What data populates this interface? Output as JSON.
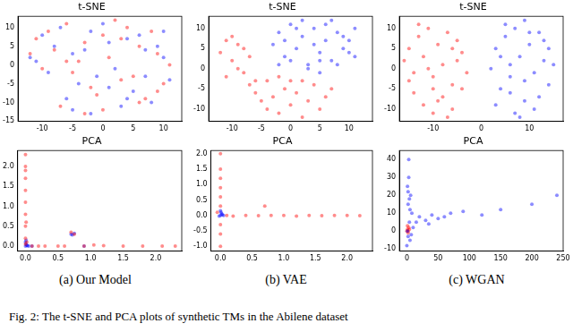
{
  "chart_data": [
    {
      "type": "scatter",
      "title": "t-SNE",
      "grid": false,
      "marker": "circle",
      "xlim": [
        -14,
        13
      ],
      "xticks": [
        -10,
        -5,
        0,
        5,
        10
      ],
      "ylim": [
        -15,
        13
      ],
      "yticks": [
        -15,
        -10,
        -5,
        0,
        5,
        10
      ],
      "series": [
        {
          "color": "#ff0000",
          "x": [
            -11,
            -9,
            -8,
            -6,
            -5,
            -3,
            -2,
            0,
            1,
            3,
            4,
            6,
            7,
            9,
            10,
            -10,
            -7,
            -4,
            -1,
            2,
            5,
            8,
            11,
            -12,
            -6,
            0,
            6,
            -3,
            3,
            9
          ],
          "y": [
            7,
            9,
            4,
            11,
            -2,
            6,
            -6,
            8,
            2,
            -4,
            10,
            5,
            -9,
            3,
            -5,
            -1,
            -11,
            1,
            -8,
            12,
            -3,
            9,
            0,
            3,
            1,
            -12,
            -10,
            -13,
            7,
            -7
          ]
        },
        {
          "color": "#0000ff",
          "x": [
            -10,
            -8,
            -7,
            -5,
            -4,
            -2,
            -1,
            1,
            2,
            4,
            5,
            7,
            8,
            10,
            11,
            -11,
            -9,
            -6,
            -3,
            0,
            3,
            6,
            9,
            -12,
            -5,
            1,
            7,
            -2,
            4,
            10
          ],
          "y": [
            8,
            5,
            10,
            3,
            -5,
            9,
            -3,
            6,
            -1,
            7,
            -7,
            4,
            -10,
            2,
            -4,
            1,
            -2,
            -9,
            4,
            11,
            -11,
            8,
            5,
            2,
            -12,
            -6,
            -3,
            -13,
            -9,
            9
          ]
        }
      ]
    },
    {
      "type": "scatter",
      "title": "PCA",
      "grid": false,
      "marker": "circle",
      "xlim": [
        -0.12,
        2.4
      ],
      "xticks": [
        {
          "value": 0,
          "label": "0.0"
        },
        {
          "value": 0.5,
          "label": "0.5"
        },
        {
          "value": 1,
          "label": "1.0"
        },
        {
          "value": 1.5,
          "label": "1.5"
        },
        {
          "value": 2,
          "label": "2.0"
        }
      ],
      "ylim": [
        -0.12,
        2.4
      ],
      "yticks": [
        {
          "value": 0,
          "label": "0.0"
        },
        {
          "value": 0.5,
          "label": "0.5"
        },
        {
          "value": 1,
          "label": "1.0"
        },
        {
          "value": 1.5,
          "label": "1.5"
        },
        {
          "value": 2,
          "label": "2.0"
        }
      ],
      "series": [
        {
          "color": "#ff0000",
          "x": [
            0,
            0,
            0,
            0,
            0,
            0,
            0,
            0,
            0.02,
            0.01,
            0.3,
            0.6,
            0.9,
            1.2,
            1.5,
            1.8,
            2.1,
            2.3,
            0.7,
            0.75,
            1.05,
            0.5,
            0.1,
            0.2,
            0,
            0
          ],
          "y": [
            0.2,
            0.5,
            0.8,
            1.1,
            1.4,
            1.7,
            2.0,
            2.3,
            0.1,
            0.6,
            0,
            0,
            0,
            0.01,
            0,
            0,
            0,
            0,
            0.35,
            0.3,
            0.03,
            0,
            0,
            0,
            0.05,
            1.9
          ]
        },
        {
          "color": "#0000ff",
          "x": [
            0,
            0.02,
            0.05,
            0.01,
            0,
            0.03,
            0.7,
            0.75,
            0.72,
            0.1,
            0.01,
            0.9
          ],
          "y": [
            0,
            0.02,
            0,
            0.05,
            0.1,
            0.01,
            0.3,
            0.32,
            0.28,
            0,
            0.15,
            0
          ]
        }
      ]
    },
    {
      "type": "scatter",
      "title": "t-SNE",
      "grid": false,
      "marker": "circle",
      "xlim": [
        -14,
        14
      ],
      "xticks": [
        -10,
        -5,
        0,
        5,
        10
      ],
      "ylim": [
        -13,
        13
      ],
      "yticks": [
        -10,
        -5,
        0,
        5,
        10
      ],
      "series": [
        {
          "color": "#ff0000",
          "x": [
            -12,
            -11,
            -10,
            -9,
            -8,
            -7,
            -11,
            -10,
            -9,
            -8,
            -7,
            -6,
            -5,
            -4,
            -3,
            -2,
            -1,
            0,
            1,
            2,
            3,
            4,
            5,
            6,
            7,
            -6,
            -4,
            -2,
            0,
            2
          ],
          "y": [
            4,
            7,
            2,
            6,
            -1,
            3,
            -2,
            8,
            0,
            5,
            -4,
            -6,
            -8,
            -10,
            -7,
            -11,
            -5,
            -9,
            -6,
            -12,
            -8,
            -4,
            -10,
            -7,
            -5,
            -3,
            -3,
            -2,
            -3,
            -3
          ]
        },
        {
          "color": "#0000ff",
          "x": [
            -3,
            -2,
            -1,
            0,
            1,
            2,
            3,
            4,
            5,
            6,
            7,
            8,
            9,
            10,
            11,
            -2,
            0,
            2,
            4,
            6,
            8,
            10,
            1,
            3,
            5,
            7,
            9,
            -1,
            5,
            11
          ],
          "y": [
            6,
            9,
            3,
            11,
            5,
            8,
            1,
            10,
            4,
            7,
            2,
            9,
            5,
            7,
            3,
            1,
            2,
            12,
            6,
            11,
            1,
            4,
            10,
            0,
            2,
            12,
            8,
            7,
            -1,
            10
          ]
        }
      ]
    },
    {
      "type": "scatter",
      "title": "PCA",
      "grid": false,
      "marker": "circle",
      "xlim": [
        -0.15,
        2.4
      ],
      "xticks": [
        {
          "value": 0,
          "label": "0.0"
        },
        {
          "value": 0.5,
          "label": "0.5"
        },
        {
          "value": 1,
          "label": "1.0"
        },
        {
          "value": 1.5,
          "label": "1.5"
        },
        {
          "value": 2,
          "label": "2.0"
        }
      ],
      "ylim": [
        -1.15,
        2.1
      ],
      "yticks": [
        {
          "value": -1,
          "label": "-1.0"
        },
        {
          "value": -0.5,
          "label": "-0.5"
        },
        {
          "value": 0,
          "label": "0.0"
        },
        {
          "value": 0.5,
          "label": "0.5"
        },
        {
          "value": 1,
          "label": "1.0"
        },
        {
          "value": 1.5,
          "label": "1.5"
        },
        {
          "value": 2,
          "label": "2.0"
        }
      ],
      "series": [
        {
          "color": "#ff0000",
          "x": [
            0,
            0,
            0,
            0,
            0,
            0,
            0,
            0,
            0,
            0.2,
            0.4,
            0.6,
            0.8,
            1.0,
            1.2,
            1.4,
            1.6,
            1.8,
            2.0,
            2.2,
            0.7,
            -0.05,
            0.1
          ],
          "y": [
            -1.0,
            -0.6,
            -0.3,
            0.3,
            0.6,
            0.9,
            1.2,
            1.5,
            2.0,
            -0.02,
            0,
            -0.01,
            0,
            0,
            -0.02,
            0,
            -0.01,
            0,
            0,
            -0.01,
            0.3,
            0.1,
            0
          ]
        },
        {
          "color": "#0000ff",
          "x": [
            0,
            0.02,
            0.01,
            -0.02,
            0.03,
            0,
            0.05
          ],
          "y": [
            0,
            0.05,
            0.1,
            -0.02,
            0.02,
            0.15,
            0
          ]
        }
      ]
    },
    {
      "type": "scatter",
      "title": "t-SNE",
      "grid": false,
      "marker": "circle",
      "xlim": [
        -17,
        17
      ],
      "xticks": [
        -10,
        0,
        10
      ],
      "ylim": [
        -13,
        13
      ],
      "yticks": [
        -10,
        -5,
        0,
        5,
        10
      ],
      "series": [
        {
          "color": "#ff0000",
          "x": [
            -16,
            -15,
            -14,
            -13,
            -12,
            -11,
            -10,
            -9,
            -8,
            -7,
            -6,
            -5,
            -4,
            -3,
            -14,
            -12,
            -10,
            -8,
            -6,
            -4,
            -13,
            -11,
            -9,
            -7,
            -5,
            -15,
            -10,
            -6
          ],
          "y": [
            2,
            5,
            -1,
            8,
            3,
            10,
            -2,
            6,
            1,
            9,
            -4,
            7,
            4,
            -1,
            -6,
            -9,
            -11,
            -7,
            -10,
            -5,
            11,
            0,
            -8,
            -12,
            2,
            -3,
            -5,
            5
          ]
        },
        {
          "color": "#0000ff",
          "x": [
            2,
            3,
            4,
            5,
            6,
            7,
            8,
            9,
            10,
            11,
            12,
            13,
            14,
            15,
            3,
            5,
            7,
            9,
            11,
            13,
            4,
            6,
            8,
            10,
            12,
            14,
            6,
            9
          ],
          "y": [
            0,
            5,
            -5,
            8,
            -2,
            10,
            3,
            -8,
            6,
            -1,
            9,
            2,
            -4,
            1,
            -9,
            11,
            -11,
            12,
            -10,
            7,
            3,
            -6,
            -12,
            9,
            -7,
            5,
            1,
            -3
          ]
        }
      ]
    },
    {
      "type": "scatter",
      "title": "PCA",
      "grid": false,
      "marker": "circle",
      "xlim": [
        -12,
        250
      ],
      "xticks": [
        0,
        50,
        100,
        150,
        200,
        250
      ],
      "ylim": [
        -11,
        45
      ],
      "yticks": [
        -10,
        0,
        10,
        20,
        30,
        40
      ],
      "series": [
        {
          "color": "#0000ff",
          "x": [
            0,
            1,
            2,
            3,
            4,
            5,
            6,
            8,
            2,
            3,
            1,
            5,
            10,
            15,
            20,
            30,
            40,
            50,
            70,
            90,
            120,
            150,
            200,
            240,
            35,
            60,
            4,
            7,
            2
          ],
          "y": [
            -8,
            25,
            15,
            40,
            5,
            -5,
            20,
            10,
            -3,
            30,
            0,
            12,
            2,
            5,
            8,
            6,
            9,
            7,
            10,
            11,
            9,
            12,
            15,
            20,
            4,
            8,
            18,
            -2,
            22
          ]
        },
        {
          "color": "#ff0000",
          "x": [
            0,
            1,
            2,
            3,
            1,
            2,
            4
          ],
          "y": [
            0,
            1,
            -1,
            2,
            3,
            0,
            1
          ]
        }
      ]
    }
  ],
  "captions": [
    "(a) Our Model",
    "(b) VAE",
    "(c) WGAN"
  ],
  "figure_caption": "Fig. 2: The t-SNE and PCA plots of synthetic TMs in the Abilene dataset"
}
